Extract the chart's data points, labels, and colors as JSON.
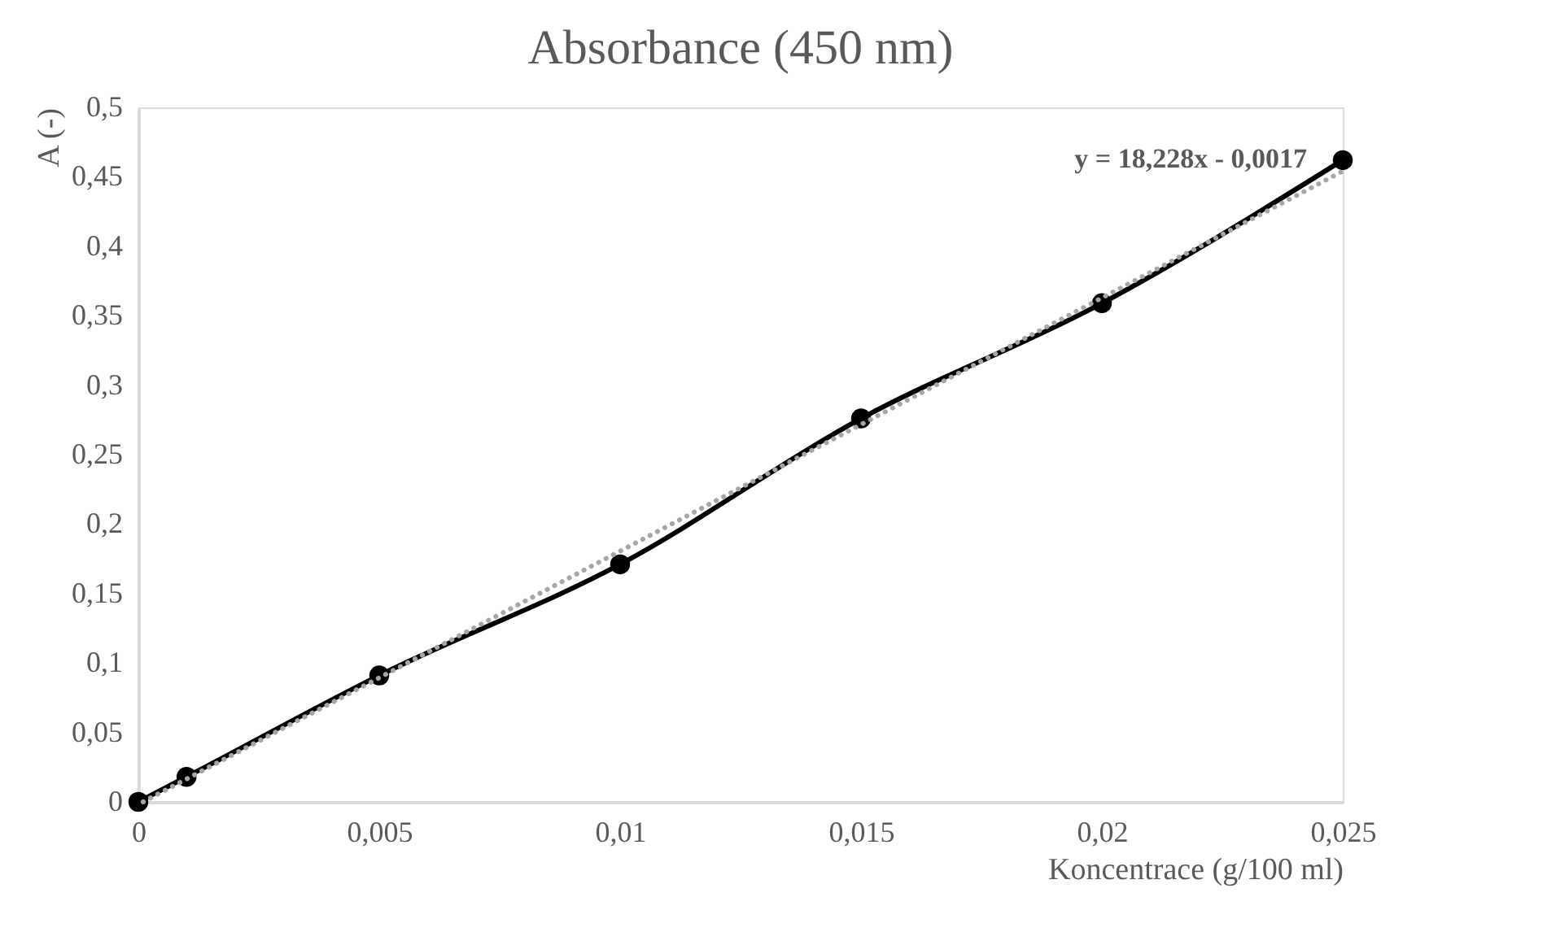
{
  "chart_data": {
    "type": "line",
    "title": "Absorbance (450 nm)",
    "xlabel": "Koncentrace (g/100 ml)",
    "ylabel": "A (-)",
    "x": [
      0,
      0.001,
      0.005,
      0.01,
      0.015,
      0.02,
      0.025
    ],
    "series": [
      {
        "color": "#000000",
        "marker": "circle",
        "line_style": "solid",
        "values": [
          0,
          0.018,
          0.091,
          0.171,
          0.276,
          0.359,
          0.462
        ]
      },
      {
        "type": "line",
        "color": "#a6a6a6",
        "marker": "none",
        "line_style": "dotted",
        "x": [
          0.0001,
          0.025
        ],
        "values": [
          0,
          0.454
        ]
      }
    ],
    "xlim": [
      0,
      0.025
    ],
    "ylim": [
      0,
      0.5
    ],
    "xticks": [
      {
        "value": 0,
        "label": "0"
      },
      {
        "value": 0.005,
        "label": "0,005"
      },
      {
        "value": 0.01,
        "label": "0,01"
      },
      {
        "value": 0.015,
        "label": "0,015"
      },
      {
        "value": 0.02,
        "label": "0,02"
      },
      {
        "value": 0.025,
        "label": "0,025"
      }
    ],
    "yticks": [
      {
        "value": 0,
        "label": "0"
      },
      {
        "value": 0.05,
        "label": "0,05"
      },
      {
        "value": 0.1,
        "label": "0,1"
      },
      {
        "value": 0.15,
        "label": "0,15"
      },
      {
        "value": 0.2,
        "label": "0,2"
      },
      {
        "value": 0.25,
        "label": "0,25"
      },
      {
        "value": 0.3,
        "label": "0,3"
      },
      {
        "value": 0.35,
        "label": "0,35"
      },
      {
        "value": 0.4,
        "label": "0,4"
      },
      {
        "value": 0.45,
        "label": "0,45"
      },
      {
        "value": 0.5,
        "label": "0,5"
      }
    ],
    "grid": false,
    "annotations": [
      "y = 18,228x - 0,0017"
    ]
  }
}
